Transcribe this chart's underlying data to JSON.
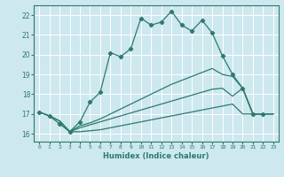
{
  "xlabel": "Humidex (Indice chaleur)",
  "background_color": "#cde8ee",
  "grid_color": "#ffffff",
  "line_color": "#2d7a6e",
  "xlim": [
    -0.5,
    23.5
  ],
  "ylim": [
    15.6,
    22.5
  ],
  "yticks": [
    16,
    17,
    18,
    19,
    20,
    21,
    22
  ],
  "xticks": [
    0,
    1,
    2,
    3,
    4,
    5,
    6,
    7,
    8,
    9,
    10,
    11,
    12,
    13,
    14,
    15,
    16,
    17,
    18,
    19,
    20,
    21,
    22,
    23
  ],
  "line1_x": [
    0,
    1,
    2,
    3,
    4,
    5,
    6,
    7,
    8,
    9,
    10,
    11,
    12,
    13,
    14,
    15,
    16,
    17,
    18,
    19,
    20,
    21,
    22
  ],
  "line1_y": [
    17.1,
    16.9,
    16.5,
    16.1,
    16.6,
    17.6,
    18.1,
    20.1,
    19.9,
    20.3,
    21.85,
    21.5,
    21.65,
    22.2,
    21.5,
    21.2,
    21.75,
    21.1,
    19.95,
    19.0,
    18.3,
    17.0,
    17.0
  ],
  "line2_x": [
    0,
    1,
    2,
    3,
    4,
    5,
    6,
    7,
    8,
    9,
    10,
    11,
    12,
    13,
    14,
    15,
    16,
    17,
    18,
    19,
    20,
    21,
    22,
    23
  ],
  "line2_y": [
    17.1,
    16.9,
    16.65,
    16.1,
    16.4,
    16.55,
    16.75,
    17.0,
    17.25,
    17.5,
    17.75,
    18.0,
    18.25,
    18.5,
    18.7,
    18.9,
    19.1,
    19.3,
    19.0,
    18.9,
    18.3,
    17.0,
    17.0,
    17.0
  ],
  "line3_x": [
    0,
    1,
    2,
    3,
    4,
    5,
    6,
    7,
    8,
    9,
    10,
    11,
    12,
    13,
    14,
    15,
    16,
    17,
    18,
    19,
    20,
    21,
    22,
    23
  ],
  "line3_y": [
    17.1,
    16.9,
    16.65,
    16.1,
    16.3,
    16.45,
    16.6,
    16.75,
    16.9,
    17.05,
    17.2,
    17.35,
    17.5,
    17.65,
    17.8,
    17.95,
    18.1,
    18.25,
    18.3,
    17.9,
    18.3,
    17.0,
    17.0,
    17.0
  ],
  "line4_x": [
    2,
    3,
    4,
    5,
    6,
    7,
    8,
    9,
    10,
    11,
    12,
    13,
    14,
    15,
    16,
    17,
    18,
    19,
    20,
    21,
    22,
    23
  ],
  "line4_y": [
    16.65,
    16.1,
    16.1,
    16.15,
    16.2,
    16.3,
    16.4,
    16.5,
    16.6,
    16.7,
    16.8,
    16.9,
    17.0,
    17.1,
    17.2,
    17.3,
    17.4,
    17.5,
    17.0,
    17.0,
    17.0,
    17.0
  ]
}
